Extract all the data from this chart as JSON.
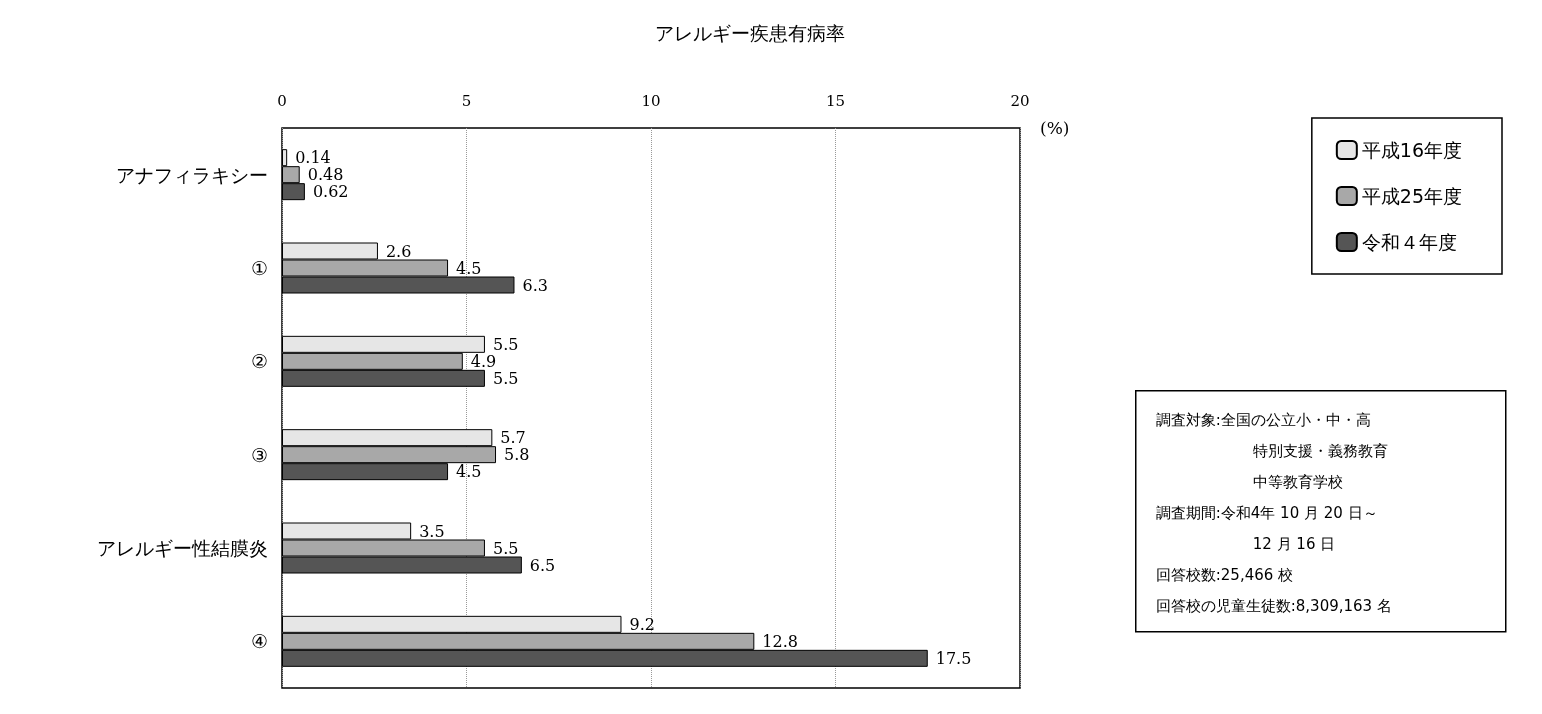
{
  "chart_data": {
    "type": "bar",
    "orientation": "horizontal",
    "title": "アレルギー疾患有病率",
    "xlabel": "(%)",
    "categories": [
      "アナフィラキシー",
      "①",
      "②",
      "③",
      "アレルギー性結膜炎",
      "④"
    ],
    "series": [
      {
        "name": "平成16年度",
        "color": "#e6e6e6",
        "values": [
          0.14,
          2.6,
          5.5,
          5.7,
          3.5,
          9.2
        ]
      },
      {
        "name": "平成25年度",
        "color": "#a8a8a8",
        "values": [
          0.48,
          4.5,
          4.9,
          5.8,
          5.5,
          12.8
        ]
      },
      {
        "name": "令和４年度",
        "color": "#555555",
        "values": [
          0.62,
          6.3,
          5.5,
          4.5,
          6.5,
          17.5
        ]
      }
    ],
    "xlim": [
      0,
      20
    ],
    "xticks": [
      0,
      5,
      10,
      15,
      20
    ],
    "grid": "x",
    "legend": "right",
    "data_labels": true,
    "annotations": [
      "調査対象:全国の公立小・中・高",
      "特別支援・義務教育",
      "中等教育学校",
      "調査期間:令和4年 10 月 20 日～",
      "12 月 16 日",
      "回答校数:25,466 校",
      "回答校の児童生徒数:8,309,163 名"
    ]
  }
}
